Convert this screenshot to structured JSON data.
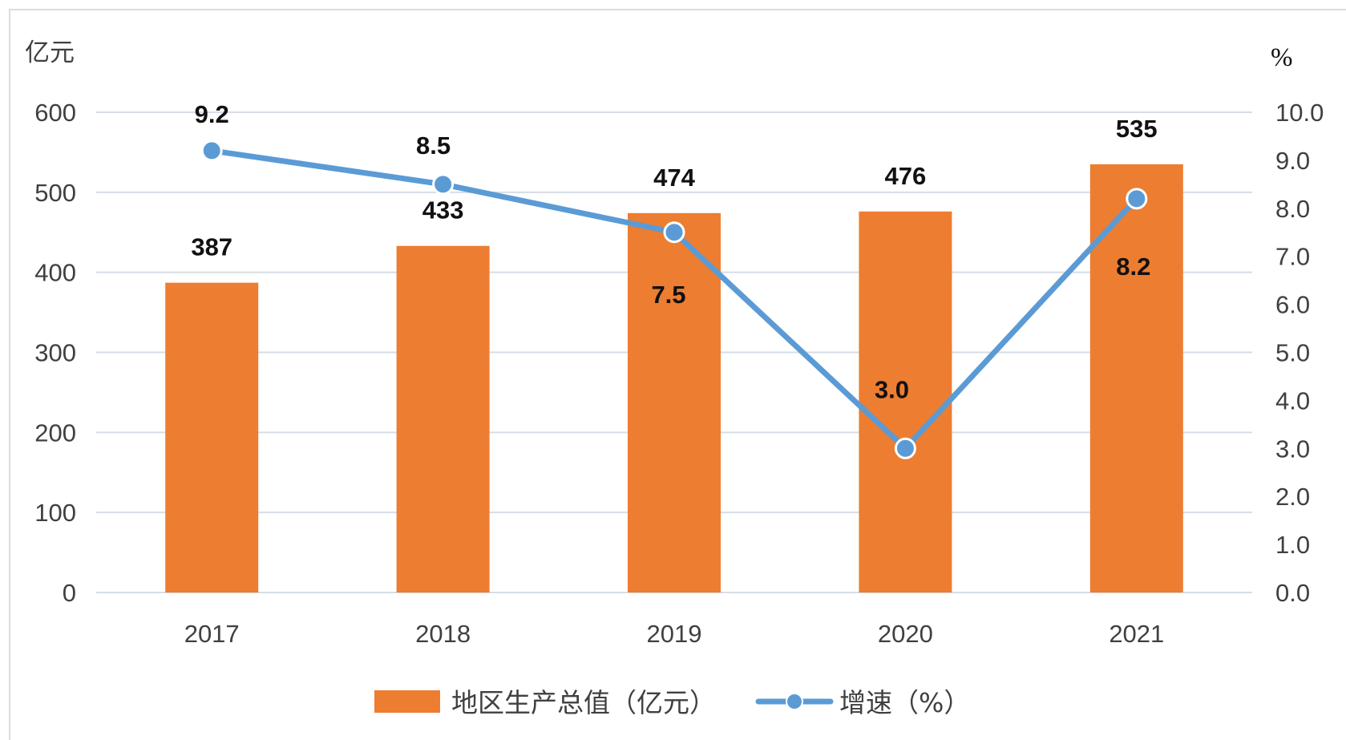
{
  "chart_data": {
    "type": "bar",
    "categories": [
      "2017",
      "2018",
      "2019",
      "2020",
      "2021"
    ],
    "series": [
      {
        "name": "地区生产总值（亿元）",
        "type": "bar",
        "axis": "left",
        "color": "#ed7d31",
        "values": [
          387,
          433,
          474,
          476,
          535
        ]
      },
      {
        "name": "增速（%）",
        "type": "line",
        "axis": "right",
        "color": "#5b9bd5",
        "values": [
          9.2,
          8.5,
          7.5,
          3.0,
          8.2
        ]
      }
    ],
    "ylabel_left": "亿元",
    "ylabel_right": "%",
    "ylim_left": [
      0,
      600
    ],
    "ylim_right": [
      0,
      10
    ],
    "yticks_left": [
      "0",
      "100",
      "200",
      "300",
      "400",
      "500",
      "600"
    ],
    "yticks_right": [
      "0.0",
      "1.0",
      "2.0",
      "3.0",
      "4.0",
      "5.0",
      "6.0",
      "7.0",
      "8.0",
      "9.0",
      "10.0"
    ],
    "bar_labels": [
      "387",
      "433",
      "474",
      "476",
      "535"
    ],
    "line_labels": [
      "9.2",
      "8.5",
      "7.5",
      "3.0",
      "8.2"
    ],
    "grid": true,
    "legend_position": "bottom"
  }
}
